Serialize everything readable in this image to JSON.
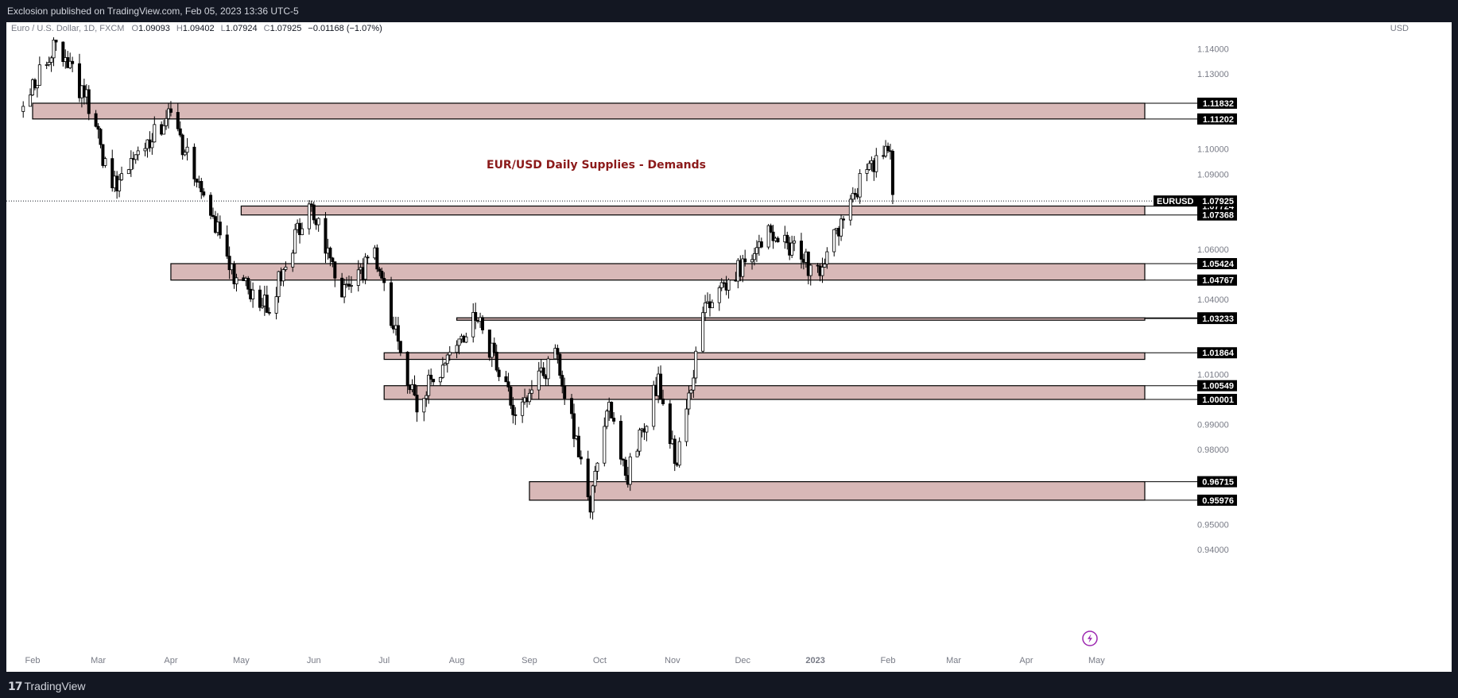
{
  "header": {
    "published": "Exclosion published on TradingView.com, Feb 05, 2023 13:36 UTC-5"
  },
  "footer": {
    "brand": "TradingView",
    "logo_mark": "17"
  },
  "legend": {
    "symbol": "Euro / U.S. Dollar, 1D, FXCM",
    "open_label": "O",
    "open": "1.09093",
    "high_label": "H",
    "high": "1.09402",
    "low_label": "L",
    "low": "1.07924",
    "close_label": "C",
    "close": "1.07925",
    "change": "−0.01168 (−1.07%)"
  },
  "currency": "USD",
  "title": "EUR/USD Daily Supplies - Demands",
  "colors": {
    "background": "#ffffff",
    "frame": "#131722",
    "zone_fill": "#d8b8b7",
    "zone_border": "#000000",
    "title_color": "#8b1a1a",
    "axis_text": "#787b86",
    "candle": "#000000",
    "lightning_icon": "#9c27b0"
  },
  "chart_data": {
    "type": "candlestick",
    "title": "EUR/USD Daily Supplies - Demands",
    "symbol": "EURUSD",
    "currency": "USD",
    "last_price": 1.07925,
    "x_labels": [
      "Feb",
      "Mar",
      "Apr",
      "May",
      "Jun",
      "Jul",
      "Aug",
      "Sep",
      "Oct",
      "Nov",
      "Dec",
      "2023",
      "Feb",
      "Mar",
      "Apr",
      "May"
    ],
    "y_ticks": [
      "1.14000",
      "1.13000",
      "1.10000",
      "1.09000",
      "1.06000",
      "1.04000",
      "1.01000",
      "0.99000",
      "0.98000",
      "0.95000",
      "0.94000"
    ],
    "ylim": [
      0.9355,
      1.154
    ],
    "zones": [
      {
        "top": 1.11832,
        "bottom": 1.11202,
        "start": "Feb 2022"
      },
      {
        "top": 1.07724,
        "bottom": 1.07368,
        "start": "May 2022"
      },
      {
        "top": 1.05424,
        "bottom": 1.04767,
        "start": "Apr 2022"
      },
      {
        "top": 1.0326,
        "bottom": 1.03233,
        "start": "Aug 2022"
      },
      {
        "top": 1.01864,
        "bottom": 1.016,
        "start": "Jul 2022"
      },
      {
        "top": 1.00549,
        "bottom": 1.00001,
        "start": "Jul 2022"
      },
      {
        "top": 0.96715,
        "bottom": 0.95976,
        "start": "Sep 2022"
      }
    ],
    "price_labels": [
      {
        "text": "1.11832",
        "value": 1.11832
      },
      {
        "text": "1.11202",
        "value": 1.11202
      },
      {
        "text": "1.07724",
        "value": 1.07724
      },
      {
        "text": "1.07368",
        "value": 1.07368
      },
      {
        "text": "1.05424",
        "value": 1.05424
      },
      {
        "text": "1.04767",
        "value": 1.04767
      },
      {
        "text": "1.03260",
        "value": 1.0326
      },
      {
        "text": "1.03233",
        "value": 1.03233
      },
      {
        "text": "1.01864",
        "value": 1.01864
      },
      {
        "text": "1.00549",
        "value": 1.00549
      },
      {
        "text": "1.00001",
        "value": 1.00001
      },
      {
        "text": "0.96715",
        "value": 0.96715
      },
      {
        "text": "0.95976",
        "value": 0.95976
      }
    ],
    "last_price_label": {
      "symbol": "EURUSD",
      "text": "1.07925"
    },
    "monthly_path": [
      [
        "Jan 28 2022",
        1.115
      ],
      [
        "Feb 10 2022",
        1.143
      ],
      [
        "Feb 24 2022",
        1.12
      ],
      [
        "Mar 7 2022",
        1.085
      ],
      [
        "Mar 31 2022",
        1.114
      ],
      [
        "Apr 14 2022",
        1.085
      ],
      [
        "Apr 28 2022",
        1.05
      ],
      [
        "May 13 2022",
        1.037
      ],
      [
        "May 30 2022",
        1.078
      ],
      [
        "Jun 14 2022",
        1.042
      ],
      [
        "Jun 27 2022",
        1.058
      ],
      [
        "Jul 14 2022",
        0.998
      ],
      [
        "Aug 10 2022",
        1.033
      ],
      [
        "Aug 26 2022",
        0.994
      ],
      [
        "Sep 12 2022",
        1.018
      ],
      [
        "Sep 27 2022",
        0.959
      ],
      [
        "Oct 4 2022",
        0.998
      ],
      [
        "Oct 13 2022",
        0.97
      ],
      [
        "Oct 26 2022",
        1.008
      ],
      [
        "Nov 3 2022",
        0.974
      ],
      [
        "Nov 15 2022",
        1.037
      ],
      [
        "Dec 14 2022",
        1.067
      ],
      [
        "Jan 2 2023",
        1.05
      ],
      [
        "Jan 20 2023",
        1.086
      ],
      [
        "Feb 2 2023",
        1.102
      ],
      [
        "Feb 3 2023",
        1.0793
      ]
    ]
  }
}
